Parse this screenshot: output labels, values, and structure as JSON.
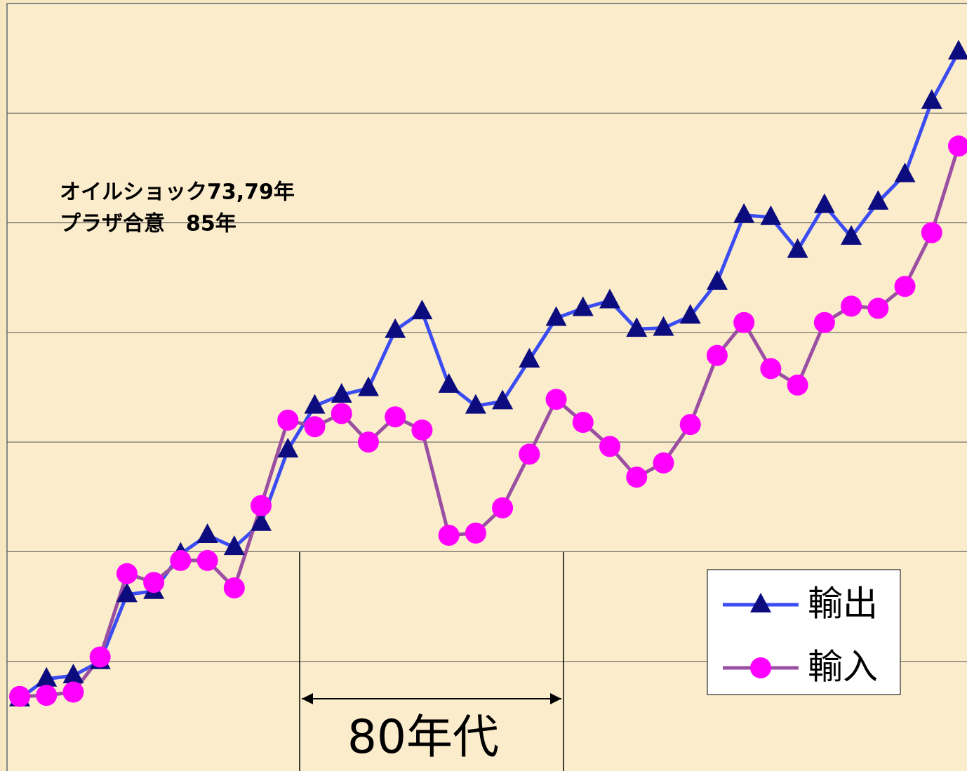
{
  "chart_data": {
    "type": "line",
    "annotations": [
      "オイルショック73,79年",
      "プラザ合意　85年",
      "80年代"
    ],
    "categories": [
      null,
      null,
      null,
      null,
      null,
      null,
      null,
      null,
      null,
      null,
      null,
      null,
      null,
      null,
      null,
      null,
      null,
      null,
      null,
      null,
      null,
      null,
      null,
      null,
      null,
      null,
      null,
      null,
      null,
      null,
      null,
      null,
      null,
      null,
      null,
      null
    ],
    "series": [
      {
        "name": "輸出",
        "color": "#3b4cf2",
        "marker_color": "#0c0c7e",
        "marker": "triangle",
        "values": [
          0.66,
          0.84,
          0.87,
          1.0,
          1.61,
          1.64,
          1.98,
          2.15,
          2.04,
          2.26,
          2.93,
          3.33,
          3.43,
          3.49,
          4.02,
          4.19,
          3.52,
          3.33,
          3.37,
          3.75,
          4.13,
          4.22,
          4.29,
          4.03,
          4.04,
          4.15,
          4.46,
          5.07,
          5.05,
          4.75,
          5.16,
          4.87,
          5.19,
          5.44,
          6.11,
          6.56
        ]
      },
      {
        "name": "輸入",
        "color": "#9a4fa2",
        "marker_color": "#ff00ff",
        "marker": "circle",
        "values": [
          0.68,
          0.69,
          0.72,
          1.04,
          1.8,
          1.72,
          1.92,
          1.92,
          1.67,
          2.42,
          3.2,
          3.14,
          3.26,
          3.0,
          3.23,
          3.11,
          2.15,
          2.17,
          2.4,
          2.89,
          3.39,
          3.18,
          2.96,
          2.68,
          2.81,
          3.16,
          3.79,
          4.09,
          3.67,
          3.52,
          4.09,
          4.24,
          4.22,
          4.42,
          4.91,
          5.7
        ]
      }
    ],
    "ylim": [
      0,
      7
    ],
    "yticks": [
      1,
      2,
      3,
      4,
      5,
      6
    ],
    "grid": true,
    "legend": "lower right"
  }
}
